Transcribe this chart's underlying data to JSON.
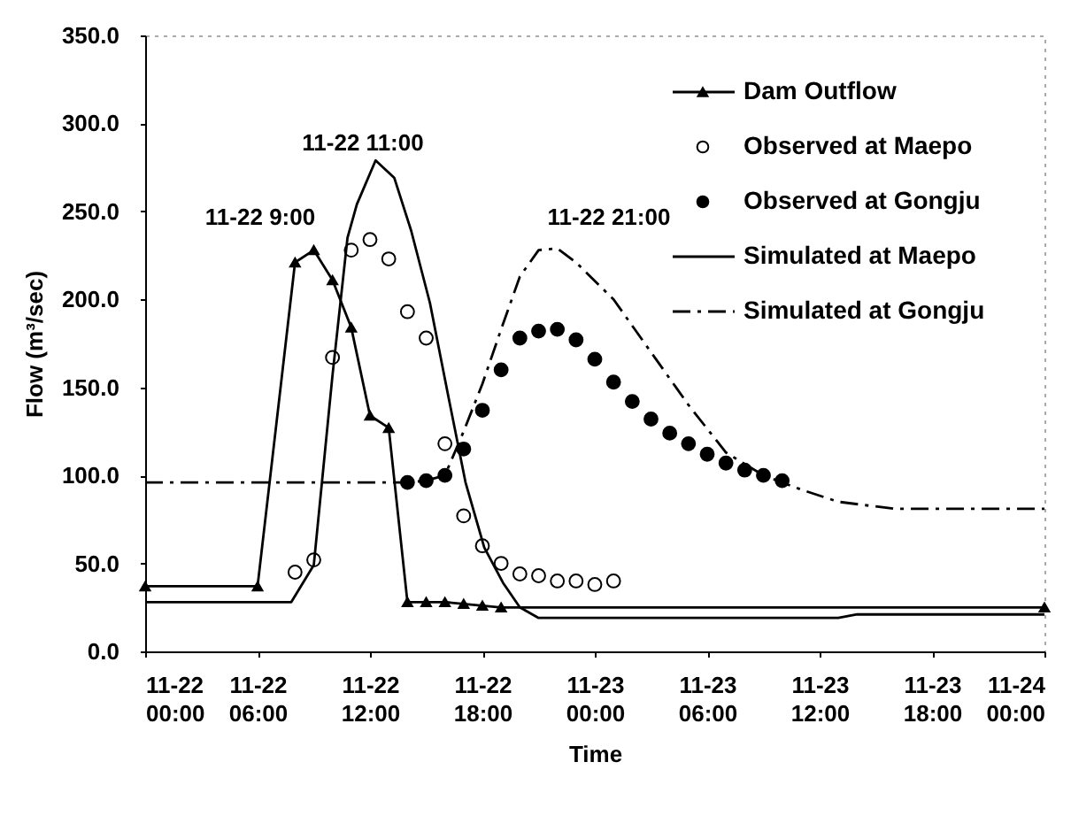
{
  "chart_data": {
    "type": "line",
    "xlabel": "Time",
    "ylabel": "Flow (m³/sec)",
    "xlim": [
      "--11-22T00:00",
      "--11-24T00:00"
    ],
    "xticks": [
      {
        "value": "--11-22T00:00",
        "label": "11-22 00:00"
      },
      {
        "value": "--11-22T06:00",
        "label": "11-22 06:00"
      },
      {
        "value": "--11-22T12:00",
        "label": "11-22 12:00"
      },
      {
        "value": "--11-22T18:00",
        "label": "11-22 18:00"
      },
      {
        "value": "--11-23T00:00",
        "label": "11-23 00:00"
      },
      {
        "value": "--11-23T06:00",
        "label": "11-23 06:00"
      },
      {
        "value": "--11-23T12:00",
        "label": "11-23 12:00"
      },
      {
        "value": "--11-23T18:00",
        "label": "11-23 18:00"
      },
      {
        "value": "--11-24T00:00",
        "label": "11-24 00:00"
      }
    ],
    "ylim": [
      0,
      350
    ],
    "yticks": [
      {
        "value": 0,
        "label": "0.0"
      },
      {
        "value": 50,
        "label": "50.0"
      },
      {
        "value": 100,
        "label": "100.0"
      },
      {
        "value": 150,
        "label": "150.0"
      },
      {
        "value": 200,
        "label": "200.0"
      },
      {
        "value": 250,
        "label": "250.0"
      },
      {
        "value": 300,
        "label": "300.0"
      },
      {
        "value": 350,
        "label": "350.0"
      }
    ],
    "grid": false,
    "legend": "top right",
    "annotations": [
      "11-22 9:00",
      "11-22 11:00",
      "11-22 21:00"
    ],
    "series": [
      {
        "name": "Dam Outflow",
        "type": "line",
        "marker": "triangle",
        "line_style": "solid",
        "color": "#000000",
        "x": [
          "--11-22T00:00",
          "--11-22T06:00",
          "--11-22T08:00",
          "--11-22T09:00",
          "--11-22T10:00",
          "--11-22T11:00",
          "--11-22T12:00",
          "--11-22T13:00",
          "--11-22T14:00",
          "--11-22T15:00",
          "--11-22T16:00",
          "--11-22T17:00",
          "--11-22T18:00",
          "--11-22T19:00",
          "--11-24T00:00"
        ],
        "values": [
          37,
          37,
          221,
          228,
          211,
          184,
          134,
          127,
          28,
          28,
          28,
          27,
          26,
          25,
          25
        ]
      },
      {
        "name": "Observed at Maepo",
        "type": "scatter",
        "marker": "circle",
        "color": "#ffffff",
        "x": [
          "--11-22T08:00",
          "--11-22T09:00",
          "--11-22T10:00",
          "--11-22T11:00",
          "--11-22T12:00",
          "--11-22T13:00",
          "--11-22T14:00",
          "--11-22T15:00",
          "--11-22T16:00",
          "--11-22T17:00",
          "--11-22T18:00",
          "--11-22T19:00",
          "--11-22T20:00",
          "--11-22T21:00",
          "--11-22T22:00",
          "--11-22T23:00",
          "--11-23T00:00",
          "--11-23T01:00"
        ],
        "values": [
          45,
          52,
          167,
          228,
          234,
          223,
          193,
          178,
          118,
          77,
          60,
          50,
          44,
          43,
          40,
          40,
          38,
          40
        ]
      },
      {
        "name": "Observed at Gongju",
        "type": "scatter",
        "marker": "circle",
        "color": "#000000",
        "x": [
          "--11-22T14:00",
          "--11-22T15:00",
          "--11-22T16:00",
          "--11-22T17:00",
          "--11-22T18:00",
          "--11-22T19:00",
          "--11-22T20:00",
          "--11-22T21:00",
          "--11-22T22:00",
          "--11-22T23:00",
          "--11-23T00:00",
          "--11-23T01:00",
          "--11-23T02:00",
          "--11-23T03:00",
          "--11-23T04:00",
          "--11-23T05:00",
          "--11-23T06:00",
          "--11-23T07:00",
          "--11-23T08:00",
          "--11-23T09:00",
          "--11-23T10:00"
        ],
        "values": [
          96,
          97,
          100,
          115,
          137,
          160,
          178,
          182,
          183,
          177,
          166,
          153,
          142,
          132,
          124,
          118,
          112,
          107,
          103,
          100,
          97
        ]
      },
      {
        "name": "Simulated at Maepo",
        "type": "line",
        "marker": "none",
        "line_style": "solid",
        "color": "#000000",
        "x": [
          "--11-22T00:00",
          "--11-22T07:48",
          "--11-22T09:00",
          "--11-22T10:00",
          "--11-22T10:48",
          "--11-22T11:18",
          "--11-22T12:18",
          "--11-22T13:18",
          "--11-22T14:12",
          "--11-22T15:12",
          "--11-22T16:12",
          "--11-22T17:06",
          "--11-22T18:06",
          "--11-22T19:06",
          "--11-22T20:00",
          "--11-22T21:00",
          "--11-23T13:00",
          "--11-23T14:00",
          "--11-24T00:00"
        ],
        "values": [
          28,
          28,
          49,
          157,
          235,
          254,
          279,
          269,
          239,
          198,
          144,
          96,
          59,
          39,
          25,
          19,
          19,
          21,
          21
        ]
      },
      {
        "name": "Simulated at Gongju",
        "type": "line",
        "marker": "none",
        "line_style": "dashed",
        "color": "#000000",
        "x": [
          "--11-22T00:00",
          "--11-22T14:00",
          "--11-22T15:00",
          "--11-22T16:00",
          "--11-22T17:00",
          "--11-22T18:00",
          "--11-22T19:00",
          "--11-22T20:00",
          "--11-22T21:00",
          "--11-22T22:00",
          "--11-22T23:00",
          "--11-23T01:00",
          "--11-23T03:00",
          "--11-23T05:00",
          "--11-23T07:00",
          "--11-23T09:00",
          "--11-23T11:00",
          "--11-23T13:00",
          "--11-23T16:00",
          "--11-24T00:00"
        ],
        "values": [
          96,
          96,
          97,
          100,
          125,
          152,
          183,
          213,
          228,
          229,
          221,
          200,
          170,
          140,
          113,
          100,
          92,
          85,
          81,
          81
        ]
      }
    ]
  }
}
